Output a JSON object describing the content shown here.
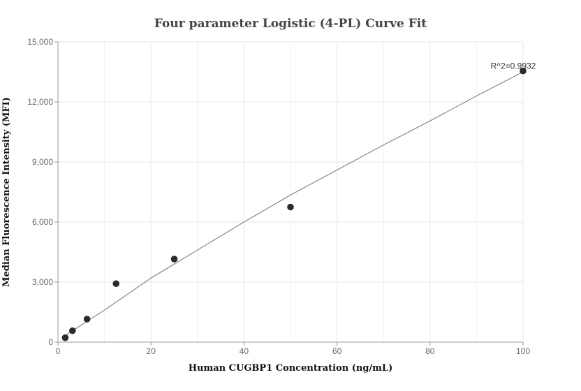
{
  "chart_data": {
    "type": "scatter",
    "title": "Four parameter Logistic (4-PL) Curve Fit",
    "xlabel": "Human CUGBP1 Concentration (ng/mL)",
    "ylabel": "Median Fluorescence Intensity (MFI)",
    "xlim": [
      0,
      100
    ],
    "ylim": [
      0,
      15000
    ],
    "x_ticks": [
      0,
      20,
      40,
      60,
      80,
      100
    ],
    "y_ticks": [
      0,
      3000,
      6000,
      9000,
      12000,
      15000
    ],
    "x_tick_labels": [
      "0",
      "20",
      "40",
      "60",
      "80",
      "100"
    ],
    "y_tick_labels": [
      "0",
      "3,000",
      "6,000",
      "9,000",
      "12,000",
      "15,000"
    ],
    "grid": true,
    "points": [
      {
        "x": 1.5625,
        "y": 220
      },
      {
        "x": 3.125,
        "y": 570
      },
      {
        "x": 6.25,
        "y": 1150
      },
      {
        "x": 12.5,
        "y": 2920
      },
      {
        "x": 25,
        "y": 4150
      },
      {
        "x": 50,
        "y": 6750
      },
      {
        "x": 100,
        "y": 13550
      }
    ],
    "fit_curve": [
      {
        "x": 1,
        "y": 250
      },
      {
        "x": 5,
        "y": 850
      },
      {
        "x": 10,
        "y": 1600
      },
      {
        "x": 20,
        "y": 3200
      },
      {
        "x": 30,
        "y": 4600
      },
      {
        "x": 40,
        "y": 6000
      },
      {
        "x": 50,
        "y": 7350
      },
      {
        "x": 60,
        "y": 8600
      },
      {
        "x": 70,
        "y": 9850
      },
      {
        "x": 80,
        "y": 11050
      },
      {
        "x": 90,
        "y": 12300
      },
      {
        "x": 100,
        "y": 13500
      }
    ],
    "annotation": {
      "text": "R^2=0.9932",
      "x": 100,
      "y": 13550
    }
  }
}
